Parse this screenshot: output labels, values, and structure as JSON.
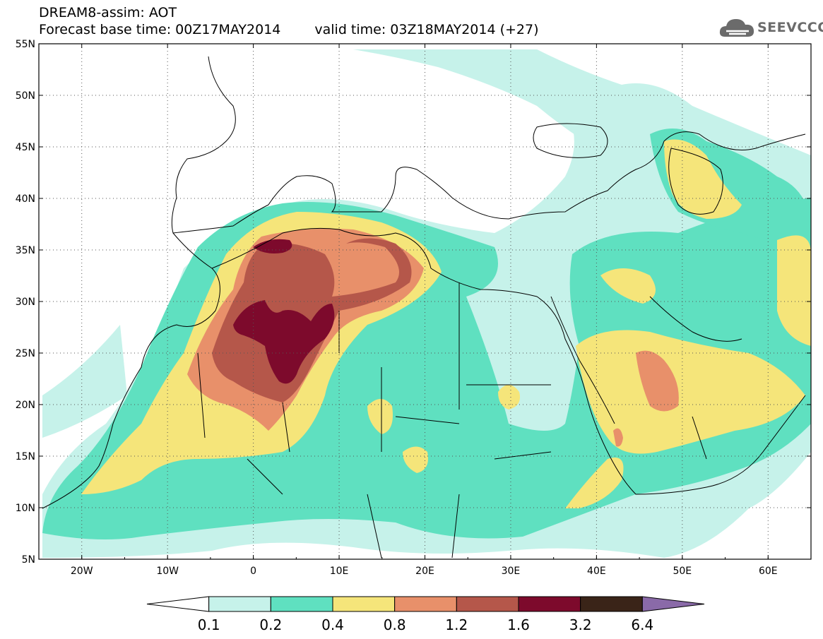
{
  "header": {
    "line1": "DREAM8-assim: AOT",
    "base_time": "Forecast base time: 00Z17MAY2014",
    "valid_time": "valid time: 03Z18MAY2014 (+27)"
  },
  "logo": {
    "text": "SEEVCCC",
    "icon": "cloud-icon"
  },
  "map": {
    "lat_labels": [
      "55N",
      "50N",
      "45N",
      "40N",
      "35N",
      "30N",
      "25N",
      "20N",
      "15N",
      "10N",
      "5N"
    ],
    "lon_labels": [
      "20W",
      "10W",
      "0",
      "10E",
      "20E",
      "30E",
      "40E",
      "50E",
      "60E"
    ],
    "lon_range": [
      -25,
      65
    ],
    "lat_range": [
      5,
      55
    ]
  },
  "colorbar": {
    "labels": [
      "0.1",
      "0.2",
      "0.4",
      "0.8",
      "1.2",
      "1.6",
      "3.2",
      "6.4"
    ],
    "colors": [
      "#ffffff",
      "#c6f2ea",
      "#5fe0c0",
      "#f5e57a",
      "#e8906a",
      "#b5574a",
      "#7d0a2c",
      "#3a2418",
      "#8a6aa8"
    ]
  },
  "aot_colors": {
    "c02": "#c6f2ea",
    "c04": "#5fe0c0",
    "c08": "#f5e57a",
    "c12": "#e8906a",
    "c16": "#b5574a",
    "c32": "#7d0a2c"
  }
}
